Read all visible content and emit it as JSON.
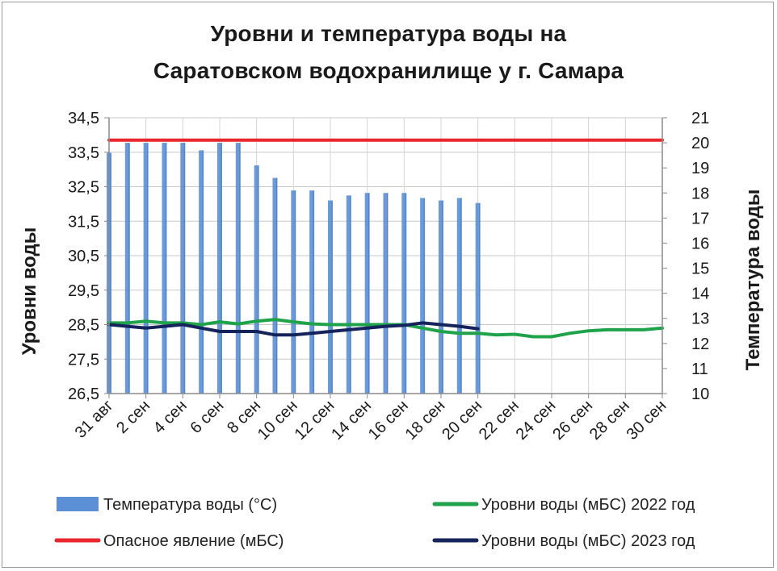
{
  "chart_data": {
    "type": "bar+line",
    "title_line1": "Уровни и температура  воды на",
    "title_line2": "Саратовском водохранилище у  г. Самара",
    "y_left_label": "Уровни воды",
    "y_right_label": "Температура воды",
    "y_left_ticks": [
      "34,5",
      "33,5",
      "32,5",
      "31,5",
      "30,5",
      "29,5",
      "28,5",
      "27,5",
      "26,5"
    ],
    "y_left_ticks_values": [
      34.5,
      33.5,
      32.5,
      31.5,
      30.5,
      29.5,
      28.5,
      27.5,
      26.5
    ],
    "y_left_range": [
      26.5,
      34.5
    ],
    "y_right_ticks": [
      "21",
      "20",
      "19",
      "18",
      "17",
      "16",
      "15",
      "14",
      "13",
      "12",
      "11",
      "10"
    ],
    "y_right_ticks_values": [
      21,
      20,
      19,
      18,
      17,
      16,
      15,
      14,
      13,
      12,
      11,
      10
    ],
    "y_right_range": [
      10,
      21
    ],
    "x_labels": [
      "31 авг",
      "2 сен",
      "4 сен",
      "6 сен",
      "8 сен",
      "10 сен",
      "12 сен",
      "14 сен",
      "16 сен",
      "18 сен",
      "20 сен",
      "22 сен",
      "24 сен",
      "26 сен",
      "28 сен",
      "30 сен"
    ],
    "days": [
      "31 авг",
      "1 сен",
      "2 сен",
      "3 сен",
      "4 сен",
      "5 сен",
      "6 сен",
      "7 сен",
      "8 сен",
      "9 сен",
      "10 сен",
      "11 сен",
      "12 сен",
      "13 сен",
      "14 сен",
      "15 сен",
      "16 сен",
      "17 сен",
      "18 сен",
      "19 сен",
      "20 сен",
      "21 сен",
      "22 сен",
      "23 сен",
      "24 сен",
      "25 сен",
      "26 сен",
      "27 сен",
      "28 сен",
      "29 сен",
      "30 сен"
    ],
    "grid": true,
    "legend_position": "bottom",
    "series": [
      {
        "name": "Температура воды (°С)",
        "type": "bar",
        "axis": "right",
        "color": "#5b8fd6",
        "values": [
          19.6,
          20.0,
          20.0,
          20.0,
          20.0,
          19.7,
          20.0,
          20.0,
          19.1,
          18.6,
          18.1,
          18.1,
          17.7,
          17.9,
          18.0,
          18.0,
          18.0,
          17.8,
          17.7,
          17.8,
          17.6
        ]
      },
      {
        "name": "Уровни воды (мБС) 2022 год",
        "type": "line",
        "axis": "left",
        "color": "#1fa34a",
        "values": [
          28.55,
          28.55,
          28.6,
          28.55,
          28.55,
          28.5,
          28.58,
          28.52,
          28.6,
          28.65,
          28.58,
          28.52,
          28.5,
          28.5,
          28.5,
          28.5,
          28.5,
          28.4,
          28.3,
          28.25,
          28.25,
          28.2,
          28.22,
          28.15,
          28.15,
          28.25,
          28.32,
          28.35,
          28.35,
          28.35,
          28.4
        ]
      },
      {
        "name": "Опасное явление    (мБС)",
        "type": "line",
        "axis": "left",
        "color": "#e8262b",
        "values": [
          33.85,
          33.85,
          33.85,
          33.85,
          33.85,
          33.85,
          33.85,
          33.85,
          33.85,
          33.85,
          33.85,
          33.85,
          33.85,
          33.85,
          33.85,
          33.85,
          33.85,
          33.85,
          33.85,
          33.85,
          33.85,
          33.85,
          33.85,
          33.85,
          33.85,
          33.85,
          33.85,
          33.85,
          33.85,
          33.85,
          33.85
        ]
      },
      {
        "name": "Уровни воды (мБС) 2023 год",
        "type": "line",
        "axis": "left",
        "color": "#14235c",
        "values": [
          28.5,
          28.45,
          28.4,
          28.45,
          28.5,
          28.4,
          28.3,
          28.3,
          28.3,
          28.2,
          28.2,
          28.25,
          28.3,
          28.35,
          28.4,
          28.45,
          28.48,
          28.55,
          28.5,
          28.45,
          28.38
        ]
      }
    ]
  }
}
